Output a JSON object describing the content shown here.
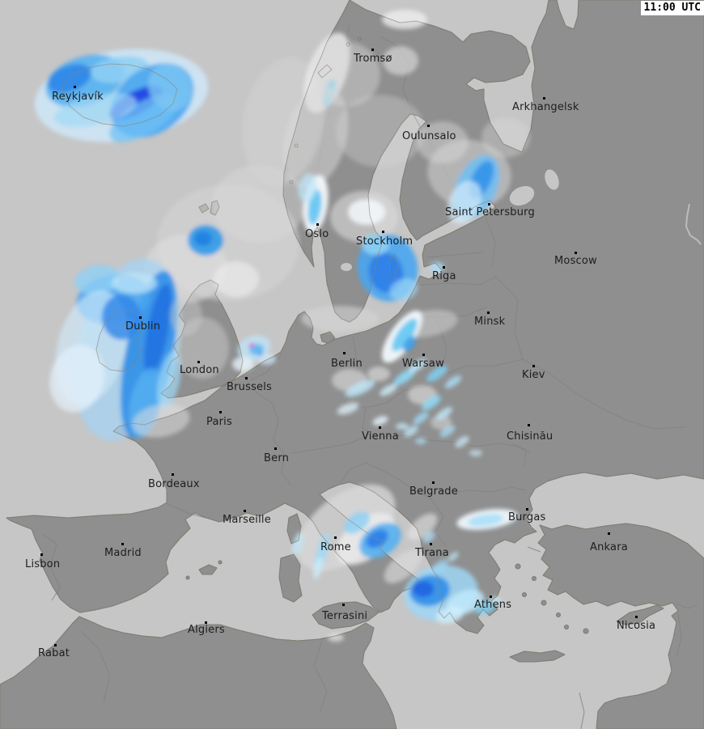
{
  "timestamp": {
    "label": "11:00 UTC"
  },
  "map": {
    "colors": {
      "sea": "#c6c6c6",
      "land": "#8f8f8f",
      "coast": "#76756f",
      "coast_overlay": "#8c8474",
      "border": "#828282",
      "label_text": "#1d1d1d",
      "city_dot": "#000000",
      "timestamp_bg": "#ffffff",
      "timestamp_text": "#000000",
      "precip_light_snow": "#dedede",
      "precip_white": "#f4f9fd",
      "precip_light_blue": "#aadcf7",
      "precip_cyan": "#62c6f2",
      "precip_blue": "#2f8fe8",
      "precip_dark_blue": "#1c3ce2",
      "precip_mixed_magenta": "#df3fd0"
    },
    "cities": [
      {
        "name": "Reykjavík",
        "dot": [
          92,
          107
        ],
        "label": [
          64,
          113
        ]
      },
      {
        "name": "Tromsø",
        "dot": [
          460,
          61
        ],
        "label": [
          437,
          66
        ]
      },
      {
        "name": "Arkhangelsk",
        "dot": [
          672,
          121
        ],
        "label": [
          633,
          126
        ]
      },
      {
        "name": "Oulunsalo",
        "dot": [
          529,
          155
        ],
        "label": [
          497,
          162
        ]
      },
      {
        "name": "Saint Petersburg",
        "dot": [
          604,
          252
        ],
        "label": [
          550,
          256
        ]
      },
      {
        "name": "Oslo",
        "dot": [
          392,
          277
        ],
        "label": [
          377,
          283
        ]
      },
      {
        "name": "Stockholm",
        "dot": [
          473,
          286
        ],
        "label": [
          440,
          292
        ]
      },
      {
        "name": "Moscow",
        "dot": [
          711,
          312
        ],
        "label": [
          685,
          316
        ]
      },
      {
        "name": "Riga",
        "dot": [
          548,
          330
        ],
        "label": [
          534,
          335
        ]
      },
      {
        "name": "Minsk",
        "dot": [
          603,
          386
        ],
        "label": [
          586,
          391
        ]
      },
      {
        "name": "Dublin",
        "dot": [
          173,
          392
        ],
        "label": [
          155,
          397
        ]
      },
      {
        "name": "Berlin",
        "dot": [
          425,
          436
        ],
        "label": [
          409,
          443
        ]
      },
      {
        "name": "Warsaw",
        "dot": [
          523,
          438
        ],
        "label": [
          497,
          443
        ]
      },
      {
        "name": "Kiev",
        "dot": [
          659,
          452
        ],
        "label": [
          645,
          457
        ]
      },
      {
        "name": "London",
        "dot": [
          245,
          447
        ],
        "label": [
          222,
          451
        ]
      },
      {
        "name": "Brussels",
        "dot": [
          304,
          467
        ],
        "label": [
          280,
          472
        ]
      },
      {
        "name": "Paris",
        "dot": [
          272,
          509
        ],
        "label": [
          255,
          515
        ]
      },
      {
        "name": "Vienna",
        "dot": [
          469,
          528
        ],
        "label": [
          447,
          533
        ]
      },
      {
        "name": "Chisinău",
        "dot": [
          653,
          525
        ],
        "label": [
          626,
          533
        ]
      },
      {
        "name": "Bern",
        "dot": [
          340,
          554
        ],
        "label": [
          326,
          560
        ]
      },
      {
        "name": "Bordeaux",
        "dot": [
          213,
          586
        ],
        "label": [
          183,
          592
        ]
      },
      {
        "name": "Belgrade",
        "dot": [
          535,
          596
        ],
        "label": [
          506,
          601
        ]
      },
      {
        "name": "Burgas",
        "dot": [
          651,
          629
        ],
        "label": [
          628,
          633
        ]
      },
      {
        "name": "Marseille",
        "dot": [
          302,
          631
        ],
        "label": [
          275,
          636
        ]
      },
      {
        "name": "Rome",
        "dot": [
          414,
          664
        ],
        "label": [
          396,
          670
        ]
      },
      {
        "name": "Tirana",
        "dot": [
          532,
          672
        ],
        "label": [
          513,
          677
        ]
      },
      {
        "name": "Ankara",
        "dot": [
          752,
          659
        ],
        "label": [
          729,
          670
        ]
      },
      {
        "name": "Madrid",
        "dot": [
          151,
          672
        ],
        "label": [
          129,
          677
        ]
      },
      {
        "name": "Lisbon",
        "dot": [
          51,
          685
        ],
        "label": [
          31,
          691
        ]
      },
      {
        "name": "Athens",
        "dot": [
          606,
          737
        ],
        "label": [
          586,
          741
        ]
      },
      {
        "name": "Terrasini",
        "dot": [
          424,
          747
        ],
        "label": [
          398,
          755
        ]
      },
      {
        "name": "Nicosia",
        "dot": [
          786,
          762
        ],
        "label": [
          762,
          767
        ]
      },
      {
        "name": "Algiers",
        "dot": [
          254,
          769
        ],
        "label": [
          232,
          772
        ]
      },
      {
        "name": "Rabat",
        "dot": [
          68,
          797
        ],
        "label": [
          47,
          801
        ]
      }
    ],
    "precipitation": [
      [
        150,
        118,
        108,
        56,
        -8,
        "#cfe8f8",
        0.85
      ],
      [
        105,
        100,
        50,
        30,
        -18,
        "#55b0f0",
        0.9
      ],
      [
        86,
        97,
        28,
        16,
        -20,
        "#2f86e8",
        0.9
      ],
      [
        148,
        86,
        36,
        16,
        -8,
        "#8fd0f5",
        0.85
      ],
      [
        188,
        124,
        56,
        40,
        -35,
        "#49a5f0",
        0.9
      ],
      [
        168,
        127,
        36,
        14,
        -28,
        "#1c3ce2",
        0.85
      ],
      [
        178,
        146,
        48,
        20,
        -30,
        "#6fc0f4",
        0.75
      ],
      [
        118,
        136,
        52,
        18,
        -12,
        "#9fd8f7",
        0.7
      ],
      [
        210,
        108,
        26,
        30,
        -30,
        "#7cc6f2",
        0.8
      ],
      [
        282,
        300,
        88,
        72,
        0,
        "#d6d6d6",
        0.55
      ],
      [
        230,
        332,
        52,
        42,
        0,
        "#dedede",
        0.6
      ],
      [
        320,
        252,
        58,
        48,
        0,
        "#dadada",
        0.45
      ],
      [
        254,
        297,
        22,
        19,
        0,
        "#2f9ae8",
        0.9
      ],
      [
        251,
        295,
        11,
        9,
        0,
        "#1f7fe0",
        0.9
      ],
      [
        292,
        345,
        28,
        22,
        0,
        "#e9e9e9",
        0.7
      ],
      [
        350,
        150,
        50,
        80,
        10,
        "#d8d8d8",
        0.4
      ],
      [
        404,
        90,
        24,
        52,
        20,
        "#e9e9e9",
        0.85
      ],
      [
        407,
        115,
        7,
        18,
        15,
        "#76d0f0",
        0.85
      ],
      [
        500,
        24,
        28,
        12,
        0,
        "#eeeeee",
        0.8
      ],
      [
        495,
        75,
        22,
        18,
        0,
        "#e3e3e3",
        0.6
      ],
      [
        390,
        170,
        38,
        65,
        15,
        "#dcdcdc",
        0.5
      ],
      [
        428,
        92,
        42,
        40,
        0,
        "#d9d9d9",
        0.45
      ],
      [
        470,
        162,
        55,
        45,
        0,
        "#d6d6d6",
        0.35
      ],
      [
        580,
        215,
        52,
        42,
        10,
        "#d9d9d9",
        0.5
      ],
      [
        547,
        176,
        32,
        26,
        0,
        "#dcdcdc",
        0.45
      ],
      [
        625,
        170,
        30,
        25,
        0,
        "#d9d9d9",
        0.4
      ],
      [
        390,
        252,
        15,
        36,
        8,
        "#f3f8fc",
        0.95
      ],
      [
        389,
        256,
        8,
        22,
        8,
        "#62c4f2",
        0.9
      ],
      [
        380,
        232,
        11,
        18,
        10,
        "#bfe6f8",
        0.75
      ],
      [
        450,
        268,
        42,
        32,
        0,
        "#dadada",
        0.6
      ],
      [
        453,
        262,
        23,
        16,
        0,
        "#f4f9fd",
        0.85
      ],
      [
        479,
        331,
        37,
        42,
        -15,
        "#49a5f0",
        0.9
      ],
      [
        477,
        337,
        21,
        25,
        -15,
        "#2b7de8",
        0.85
      ],
      [
        464,
        302,
        17,
        13,
        0,
        "#8fd4f5",
        0.85
      ],
      [
        499,
        358,
        18,
        13,
        -20,
        "#9fd8f7",
        0.65
      ],
      [
        589,
        231,
        25,
        42,
        25,
        "#6fc0f4",
        0.85
      ],
      [
        595,
        222,
        12,
        25,
        25,
        "#2f8fe8",
        0.85
      ],
      [
        574,
        250,
        19,
        28,
        25,
        "#d4edfa",
        0.7
      ],
      [
        540,
        331,
        9,
        7,
        0,
        "#aadcf7",
        0.8
      ],
      [
        528,
        400,
        38,
        16,
        -10,
        "#d8d8d8",
        0.5
      ],
      [
        420,
        394,
        48,
        16,
        0,
        "#d6d6d6",
        0.6
      ],
      [
        314,
        430,
        21,
        15,
        -20,
        "#bfe4f8",
        0.75
      ],
      [
        317,
        432,
        9,
        7,
        0,
        "#55b4f0",
        0.85
      ],
      [
        311,
        427,
        3,
        3,
        0,
        "#df3fd0",
        0.9
      ],
      [
        330,
        444,
        11,
        7,
        0,
        "#cfeafb",
        0.7
      ],
      [
        300,
        450,
        13,
        9,
        0,
        "#e6f3fb",
        0.8
      ],
      [
        322,
        438,
        2,
        2,
        0,
        "#2f5fe8",
        0.9
      ],
      [
        497,
        416,
        38,
        15,
        -55,
        "#f2f9fd",
        0.95
      ],
      [
        500,
        414,
        24,
        9,
        -55,
        "#62c6f2",
        0.9
      ],
      [
        506,
        425,
        11,
        6,
        -55,
        "#2f9ae8",
        0.85
      ],
      [
        432,
        470,
        22,
        14,
        0,
        "#cfcfcf",
        0.75
      ],
      [
        522,
        488,
        18,
        12,
        0,
        "#d2d2d2",
        0.75
      ],
      [
        468,
        462,
        14,
        9,
        0,
        "#d7d7d7",
        0.7
      ],
      [
        545,
        522,
        13,
        9,
        0,
        "#d4d4d4",
        0.6
      ],
      [
        500,
        466,
        16,
        6,
        -35,
        "#8fd8f5",
        0.9
      ],
      [
        516,
        452,
        13,
        5,
        -35,
        "#bfe9fa",
        0.85
      ],
      [
        540,
        462,
        15,
        6,
        -35,
        "#7fd0f4",
        0.85
      ],
      [
        560,
        472,
        12,
        5,
        -35,
        "#aadff7",
        0.8
      ],
      [
        533,
        498,
        14,
        6,
        -35,
        "#8fd8f5",
        0.85
      ],
      [
        549,
        511,
        12,
        5,
        -35,
        "#bfe9fa",
        0.8
      ],
      [
        520,
        517,
        11,
        5,
        -35,
        "#9fdaf6",
        0.8
      ],
      [
        508,
        533,
        10,
        5,
        -35,
        "#bfe9fa",
        0.75
      ],
      [
        553,
        533,
        11,
        5,
        -35,
        "#aadff7",
        0.75
      ],
      [
        571,
        546,
        10,
        5,
        -35,
        "#cfeefb",
        0.7
      ],
      [
        480,
        482,
        12,
        5,
        -30,
        "#cfeefb",
        0.8
      ],
      [
        445,
        480,
        20,
        7,
        -25,
        "#bfe9fa",
        0.8
      ],
      [
        430,
        505,
        14,
        6,
        -20,
        "#dff2fc",
        0.75
      ],
      [
        470,
        520,
        10,
        5,
        -20,
        "#e8f5fc",
        0.8
      ],
      [
        497,
        527,
        8,
        4,
        0,
        "#bfe9fa",
        0.8
      ],
      [
        520,
        545,
        7,
        4,
        0,
        "#aadff7",
        0.7
      ],
      [
        588,
        560,
        8,
        4,
        0,
        "#cfeefb",
        0.65
      ],
      [
        428,
        652,
        70,
        40,
        -38,
        "#d7d7d7",
        0.8
      ],
      [
        452,
        666,
        42,
        24,
        -38,
        "#ebebeb",
        0.85
      ],
      [
        470,
        668,
        28,
        19,
        -32,
        "#55b0f0",
        0.9
      ],
      [
        466,
        666,
        15,
        10,
        -32,
        "#2b7de8",
        0.9
      ],
      [
        441,
        646,
        18,
        11,
        -35,
        "#8fd0f5",
        0.85
      ],
      [
        498,
        700,
        28,
        14,
        -40,
        "#dcdcdc",
        0.65
      ],
      [
        522,
        651,
        22,
        11,
        -40,
        "#e8e8e8",
        0.6
      ],
      [
        530,
        664,
        9,
        5,
        -40,
        "#aadff7",
        0.75
      ],
      [
        544,
        700,
        11,
        6,
        -40,
        "#9fdaf6",
        0.7
      ],
      [
        560,
        688,
        8,
        4,
        -40,
        "#bfe9fa",
        0.7
      ],
      [
        398,
        682,
        7,
        24,
        15,
        "#9fdaf6",
        0.8
      ],
      [
        393,
        702,
        5,
        14,
        15,
        "#cfeefb",
        0.75
      ],
      [
        368,
        672,
        6,
        15,
        15,
        "#bfe9fa",
        0.7
      ],
      [
        415,
        788,
        10,
        5,
        0,
        "#e9e9e9",
        0.7
      ],
      [
        545,
        733,
        46,
        34,
        -10,
        "#9fd6f6",
        0.85
      ],
      [
        531,
        730,
        25,
        19,
        -10,
        "#2f8fe8",
        0.9
      ],
      [
        523,
        728,
        13,
        10,
        0,
        "#1f5fe0",
        0.85
      ],
      [
        575,
        744,
        24,
        14,
        -20,
        "#bfe9fa",
        0.85
      ],
      [
        600,
        751,
        13,
        8,
        -20,
        "#7fd0f4",
        0.8
      ],
      [
        556,
        760,
        18,
        10,
        -15,
        "#cfeefb",
        0.8
      ],
      [
        612,
        742,
        8,
        5,
        0,
        "#bfe9fa",
        0.6
      ],
      [
        602,
        642,
        38,
        12,
        -8,
        "#eef7fc",
        0.95
      ],
      [
        600,
        643,
        22,
        7,
        -8,
        "#aadff7",
        0.9
      ],
      [
        158,
        432,
        62,
        115,
        14,
        "#a6d3f3",
        0.75
      ],
      [
        184,
        438,
        29,
        105,
        11,
        "#2f8fe8",
        0.9
      ],
      [
        195,
        408,
        13,
        58,
        11,
        "#1f6fdf",
        0.85
      ],
      [
        180,
        498,
        19,
        44,
        12,
        "#55b0f0",
        0.8
      ],
      [
        140,
        370,
        46,
        30,
        -10,
        "#49a5f0",
        0.85
      ],
      [
        120,
        346,
        28,
        18,
        -10,
        "#8fd0f5",
        0.8
      ],
      [
        113,
        430,
        42,
        72,
        15,
        "#cfeafb",
        0.65
      ],
      [
        95,
        468,
        33,
        42,
        15,
        "#e4f1fb",
        0.7
      ],
      [
        150,
        392,
        24,
        28,
        0,
        "#2f86e8",
        0.8
      ],
      [
        209,
        470,
        13,
        38,
        12,
        "#9fd8f7",
        0.7
      ],
      [
        166,
        350,
        28,
        13,
        0,
        "#bfe6f8",
        0.75
      ],
      [
        199,
        520,
        36,
        20,
        -10,
        "#dedede",
        0.55
      ],
      [
        250,
        430,
        33,
        38,
        0,
        "#d9d9d9",
        0.4
      ],
      [
        230,
        390,
        20,
        25,
        0,
        "#cccccc",
        0.45
      ]
    ]
  }
}
